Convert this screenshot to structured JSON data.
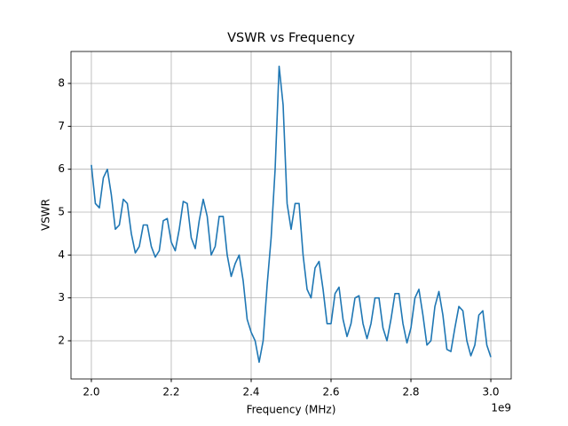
{
  "chart_data": {
    "type": "line",
    "title": "VSWR vs Frequency",
    "x_label": "Frequency (MHz)",
    "y_label": "VSWR",
    "x_offset_label": "1e9",
    "x": [
      2.0,
      2.01,
      2.02,
      2.03,
      2.04,
      2.05,
      2.06,
      2.07,
      2.08,
      2.09,
      2.1,
      2.11,
      2.12,
      2.13,
      2.14,
      2.15,
      2.16,
      2.17,
      2.18,
      2.19,
      2.2,
      2.21,
      2.22,
      2.23,
      2.24,
      2.25,
      2.26,
      2.27,
      2.28,
      2.29,
      2.3,
      2.31,
      2.32,
      2.33,
      2.34,
      2.35,
      2.36,
      2.37,
      2.38,
      2.39,
      2.4,
      2.41,
      2.42,
      2.43,
      2.44,
      2.45,
      2.46,
      2.47,
      2.48,
      2.49,
      2.5,
      2.51,
      2.52,
      2.53,
      2.54,
      2.55,
      2.56,
      2.57,
      2.58,
      2.59,
      2.6,
      2.61,
      2.62,
      2.63,
      2.64,
      2.65,
      2.66,
      2.67,
      2.68,
      2.69,
      2.7,
      2.71,
      2.72,
      2.73,
      2.74,
      2.75,
      2.76,
      2.77,
      2.78,
      2.79,
      2.8,
      2.81,
      2.82,
      2.83,
      2.84,
      2.85,
      2.86,
      2.87,
      2.88,
      2.89,
      2.9,
      2.91,
      2.92,
      2.93,
      2.94,
      2.95,
      2.96,
      2.97,
      2.98,
      2.99,
      3.0
    ],
    "values": [
      6.1,
      5.2,
      5.1,
      5.8,
      6.0,
      5.4,
      4.6,
      4.7,
      5.3,
      5.2,
      4.5,
      4.05,
      4.2,
      4.7,
      4.7,
      4.2,
      3.95,
      4.1,
      4.8,
      4.85,
      4.3,
      4.1,
      4.6,
      5.25,
      5.2,
      4.4,
      4.15,
      4.8,
      5.3,
      4.9,
      4.0,
      4.2,
      4.9,
      4.9,
      4.0,
      3.5,
      3.8,
      4.0,
      3.4,
      2.5,
      2.2,
      2.0,
      1.5,
      2.0,
      3.3,
      4.4,
      6.0,
      8.4,
      7.5,
      5.2,
      4.6,
      5.2,
      5.2,
      4.0,
      3.2,
      3.0,
      3.7,
      3.85,
      3.2,
      2.4,
      2.4,
      3.1,
      3.25,
      2.5,
      2.1,
      2.4,
      3.0,
      3.05,
      2.4,
      2.05,
      2.4,
      3.0,
      3.0,
      2.3,
      2.0,
      2.5,
      3.1,
      3.1,
      2.4,
      1.95,
      2.3,
      3.0,
      3.2,
      2.6,
      1.9,
      2.0,
      2.8,
      3.15,
      2.6,
      1.8,
      1.75,
      2.3,
      2.8,
      2.7,
      2.0,
      1.65,
      1.9,
      2.6,
      2.7,
      1.9,
      1.62
    ],
    "color": "#1f77b4",
    "xlim": [
      1.949,
      3.051
    ],
    "ylim": [
      1.11,
      8.745
    ],
    "xticks": [
      {
        "value": 2.0,
        "label": "2.0"
      },
      {
        "value": 2.2,
        "label": "2.2"
      },
      {
        "value": 2.4,
        "label": "2.4"
      },
      {
        "value": 2.6,
        "label": "2.6"
      },
      {
        "value": 2.8,
        "label": "2.8"
      },
      {
        "value": 3.0,
        "label": "3.0"
      }
    ],
    "yticks": [
      2,
      3,
      4,
      5,
      6,
      7,
      8
    ],
    "grid": true
  }
}
